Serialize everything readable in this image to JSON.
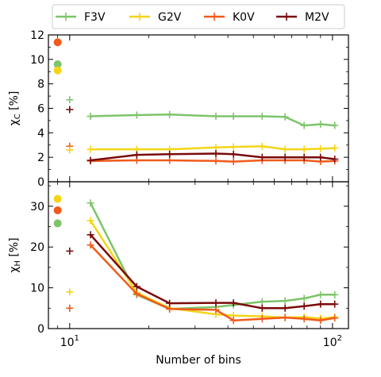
{
  "chart_data": {
    "type": "line",
    "xlabel": "Number of bins",
    "xscale": "log",
    "xlim": [
      8.3,
      115
    ],
    "x_tick_labels": [
      {
        "base": "10",
        "exp": "1"
      },
      {
        "base": "10",
        "exp": "2"
      }
    ],
    "x": [
      12,
      18,
      24,
      36,
      42,
      54,
      66,
      78,
      90,
      102
    ],
    "legend": {
      "placement": "top",
      "entries": [
        "F3V",
        "G2V",
        "K0V",
        "M2V"
      ]
    },
    "colors": {
      "F3V": "#7dc46a",
      "G2V": "#f5d516",
      "K0V": "#f05a1a",
      "M2V": "#7a0a0a"
    },
    "panels": [
      {
        "ylabel": "χ_C [%]",
        "ylabel_main": "χ",
        "ylabel_sub": "C",
        "ylabel_unit": " [%]",
        "ylim": [
          0,
          12
        ],
        "y_ticks": [
          "0",
          "2",
          "4",
          "6",
          "8",
          "10",
          "12"
        ],
        "dots": [
          {
            "series": "K0V",
            "x": 9,
            "y": 11.4
          },
          {
            "series": "F3V",
            "x": 9,
            "y": 9.6
          },
          {
            "series": "G2V",
            "x": 9,
            "y": 9.1
          }
        ],
        "crosses": [
          {
            "series": "F3V",
            "x": 10,
            "y": 6.7
          },
          {
            "series": "M2V",
            "x": 10,
            "y": 5.9
          },
          {
            "series": "K0V",
            "x": 10,
            "y": 2.9
          },
          {
            "series": "G2V",
            "x": 10,
            "y": 2.6
          }
        ],
        "series": [
          {
            "name": "F3V",
            "values": [
              5.35,
              5.45,
              5.5,
              5.35,
              5.35,
              5.35,
              5.3,
              4.6,
              4.7,
              4.6
            ]
          },
          {
            "name": "G2V",
            "values": [
              2.65,
              2.65,
              2.65,
              2.8,
              2.85,
              2.9,
              2.65,
              2.65,
              2.7,
              2.75
            ]
          },
          {
            "name": "K0V",
            "values": [
              1.7,
              1.75,
              1.75,
              1.7,
              1.65,
              1.75,
              1.75,
              1.75,
              1.65,
              1.7
            ]
          },
          {
            "name": "M2V",
            "values": [
              1.75,
              2.2,
              2.25,
              2.3,
              2.25,
              2.0,
              2.0,
              2.0,
              2.0,
              1.85
            ]
          }
        ]
      },
      {
        "ylabel": "χ_H [%]",
        "ylabel_main": "χ",
        "ylabel_sub": "H",
        "ylabel_unit": " [%]",
        "ylim": [
          0,
          36
        ],
        "y_ticks": [
          "0",
          "10",
          "20",
          "30"
        ],
        "dots": [
          {
            "series": "G2V",
            "x": 9,
            "y": 31.8
          },
          {
            "series": "K0V",
            "x": 9,
            "y": 29.0
          },
          {
            "series": "F3V",
            "x": 9,
            "y": 25.8
          }
        ],
        "crosses": [
          {
            "series": "M2V",
            "x": 10,
            "y": 19.0
          },
          {
            "series": "G2V",
            "x": 10,
            "y": 9.0
          },
          {
            "series": "F3V",
            "x": 10,
            "y": 5.0
          },
          {
            "series": "K0V",
            "x": 10,
            "y": 5.0
          }
        ],
        "series": [
          {
            "name": "F3V",
            "values": [
              30.8,
              8.3,
              4.8,
              5.3,
              5.8,
              6.6,
              6.8,
              7.4,
              8.3,
              8.3
            ]
          },
          {
            "name": "G2V",
            "values": [
              26.5,
              8.8,
              5.0,
              3.5,
              3.2,
              3.0,
              2.7,
              2.8,
              2.5,
              2.8
            ]
          },
          {
            "name": "K0V",
            "values": [
              20.5,
              8.5,
              4.8,
              4.6,
              2.0,
              2.4,
              2.7,
              2.4,
              2.0,
              2.6
            ]
          },
          {
            "name": "M2V",
            "values": [
              23.0,
              10.3,
              6.2,
              6.3,
              6.3,
              5.0,
              5.0,
              5.5,
              6.0,
              6.0
            ]
          }
        ]
      }
    ]
  }
}
